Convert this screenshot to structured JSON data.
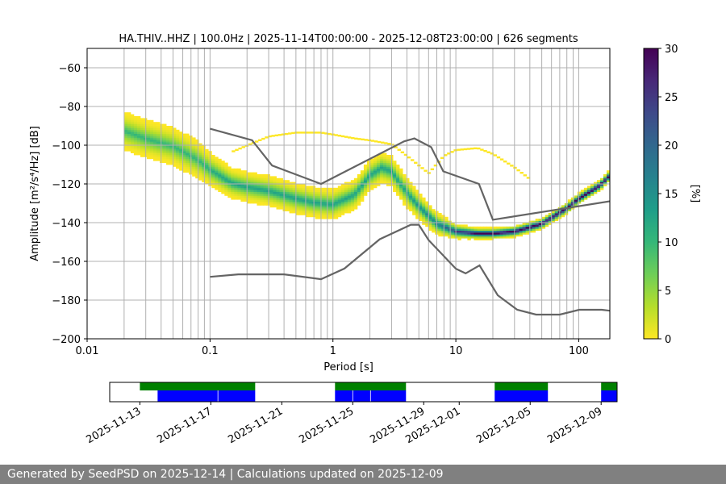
{
  "title": "HA.THIV..HHZ | 100.0Hz | 2025-11-14T00:00:00 - 2025-12-08T23:00:00 | 626 segments",
  "footer": "Generated by SeedPSD on 2025-12-14 | Calculations updated on 2025-12-09",
  "colors": {
    "model_line": "#646464",
    "availability_green": "#008000",
    "availability_blue": "#0000ff",
    "grid": "#b0b0b0"
  },
  "colormap": [
    "#fde725",
    "#b5de2b",
    "#6ece58",
    "#35b779",
    "#1f9e89",
    "#26828e",
    "#31688e",
    "#3e4989",
    "#482878",
    "#440154"
  ],
  "chart_data": [
    {
      "type": "heatmap",
      "title": "HA.THIV..HHZ | 100.0Hz | 2025-11-14T00:00:00 - 2025-12-08T23:00:00 | 626 segments",
      "xlabel": "Period [s]",
      "ylabel": "Amplitude [m²/s⁴/Hz] [dB]",
      "xscale": "log",
      "xlim": [
        0.01,
        179
      ],
      "ylim": [
        -200,
        -50
      ],
      "xticks": [
        {
          "v": 0.01,
          "label": "0.01"
        },
        {
          "v": 0.1,
          "label": "0.1"
        },
        {
          "v": 1,
          "label": "1"
        },
        {
          "v": 10,
          "label": "10"
        },
        {
          "v": 100,
          "label": "100"
        }
      ],
      "yticks": [
        -200,
        -180,
        -160,
        -140,
        -120,
        -100,
        -80,
        -60
      ],
      "grid_periods": [
        0.02,
        0.03,
        0.04,
        0.05,
        0.06,
        0.07,
        0.08,
        0.09,
        0.1,
        0.2,
        0.3,
        0.4,
        0.5,
        0.6,
        0.7,
        0.8,
        0.9,
        1,
        2,
        3,
        4,
        5,
        6,
        7,
        8,
        9,
        10,
        20,
        30,
        40,
        50,
        60,
        70,
        80,
        90,
        100
      ],
      "grid_db": [
        -180,
        -160,
        -140,
        -120,
        -100,
        -80,
        -60
      ],
      "colorbar": {
        "label": "[%]",
        "min": 0,
        "max": 30,
        "ticks": [
          0,
          5,
          10,
          15,
          20,
          25,
          30
        ]
      },
      "psd_mode": {
        "period": [
          0.02,
          0.03,
          0.05,
          0.08,
          0.1,
          0.15,
          0.2,
          0.3,
          0.5,
          0.7,
          1.0,
          1.5,
          2.0,
          2.5,
          3.0,
          4.0,
          5.0,
          7.0,
          10,
          15,
          20,
          30,
          50,
          80,
          100,
          150,
          179
        ],
        "db": [
          -93,
          -97,
          -101,
          -108,
          -113,
          -120,
          -122,
          -124,
          -128,
          -130,
          -131,
          -126,
          -116,
          -112,
          -114,
          -125,
          -132,
          -141,
          -145,
          -146,
          -146,
          -145,
          -141,
          -133,
          -128,
          -121,
          -116
        ],
        "spread_db": [
          10,
          10,
          10,
          10,
          9,
          8,
          8,
          8,
          8,
          8,
          8,
          8,
          8,
          8,
          8,
          8,
          7,
          6,
          4,
          3,
          3,
          3,
          3,
          3,
          3,
          3,
          3
        ]
      },
      "psd_outliers": {
        "period": [
          0.15,
          0.3,
          0.5,
          0.8,
          1.0,
          1.5,
          2.0,
          3.0,
          4.0,
          6.0,
          8.0,
          10,
          15,
          20,
          30,
          40
        ],
        "db": [
          -104,
          -96,
          -94,
          -94,
          -95,
          -97,
          -98,
          -100,
          -106,
          -115,
          -106,
          -103,
          -102,
          -105,
          -112,
          -118
        ]
      },
      "series": [
        {
          "name": "NHNM",
          "period": [
            0.1,
            0.22,
            0.32,
            0.8,
            3.8,
            4.6,
            6.3,
            7.9,
            15.4,
            20,
            354.8
          ],
          "db": [
            -91.5,
            -97.4,
            -110.5,
            -120,
            -98,
            -96.5,
            -101,
            -113.5,
            -120,
            -138.5,
            -126
          ]
        },
        {
          "name": "NLNM",
          "period": [
            0.1,
            0.17,
            0.4,
            0.8,
            1.24,
            2.4,
            4.3,
            5.0,
            6.0,
            10.0,
            12.0,
            15.6,
            21.9,
            31.6,
            45.0,
            70.0,
            101,
            154,
            179
          ],
          "db": [
            -168,
            -166.7,
            -166.7,
            -169.2,
            -163.7,
            -148.6,
            -141.1,
            -141.1,
            -149,
            -163.8,
            -166.2,
            -162.1,
            -177.5,
            -185,
            -187.5,
            -187.5,
            -185,
            -185,
            -185.5
          ]
        }
      ]
    },
    {
      "type": "availability",
      "date_ticks": [
        "2025-11-13",
        "2025-11-17",
        "2025-11-21",
        "2025-11-25",
        "2025-11-29",
        "2025-12-01",
        "2025-12-05",
        "2025-12-09"
      ],
      "xlim_days": [
        11.3,
        39.9
      ],
      "requested": [
        [
          13.0,
          19.5
        ],
        [
          24.0,
          28.0
        ],
        [
          33.0,
          36.0
        ],
        [
          39.0,
          40.0
        ]
      ],
      "computed": [
        [
          14.0,
          19.5
        ],
        [
          24.0,
          28.0
        ],
        [
          33.0,
          36.0
        ],
        [
          39.0,
          40.0
        ]
      ],
      "gaps_days": [
        17.4,
        25.0,
        26.0
      ]
    }
  ]
}
